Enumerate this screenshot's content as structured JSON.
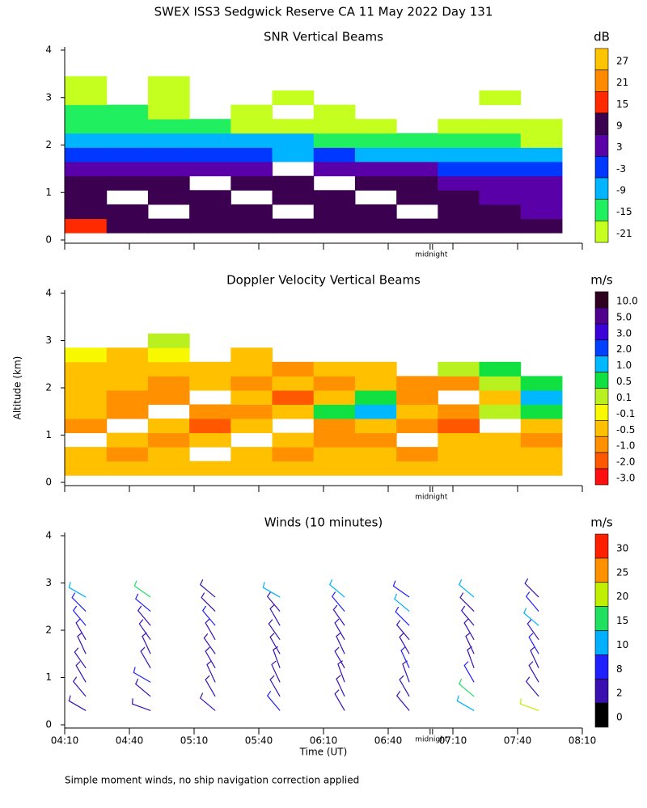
{
  "header": {
    "title": "SWEX ISS3 Sedgwick Reserve CA  11 May 2022 Day 131",
    "footnote": "Simple moment winds, no ship navigation correction applied"
  },
  "chart_data": [
    {
      "type": "contour",
      "title": "SNR Vertical Beams",
      "ylim": [
        0,
        4
      ],
      "yticks": [
        0,
        1,
        2,
        3,
        4
      ],
      "midnight": {
        "value": 7,
        "label": "midnight"
      },
      "x": [
        4.33,
        4.65,
        4.97,
        5.29,
        5.61,
        5.93,
        6.25,
        6.57,
        6.89,
        7.21,
        7.53,
        7.85
      ],
      "y": [
        0.3,
        0.6,
        0.9,
        1.2,
        1.5,
        1.8,
        2.1,
        2.4,
        2.7,
        3.0,
        3.3
      ],
      "values": [
        [
          15,
          12,
          10,
          10,
          10,
          10,
          9,
          10,
          10,
          10,
          9,
          9
        ],
        [
          10,
          9,
          null,
          9,
          10,
          null,
          9,
          9,
          null,
          9,
          9,
          4
        ],
        [
          9,
          null,
          9,
          9,
          null,
          9,
          10,
          null,
          9,
          9,
          4,
          4
        ],
        [
          10,
          9,
          9,
          null,
          9,
          9,
          null,
          9,
          9,
          4,
          3,
          3
        ],
        [
          4,
          3,
          4,
          3,
          3,
          null,
          3,
          3,
          3,
          -2,
          -2,
          -2
        ],
        [
          -2,
          -3,
          -2,
          -3,
          -2,
          -5,
          -3,
          -5,
          -6,
          -6,
          -5,
          -8
        ],
        [
          -8,
          -6,
          -9,
          -6,
          -8,
          -9,
          -10,
          -12,
          -14,
          -13,
          -14,
          -16
        ],
        [
          -10,
          -12,
          -12,
          -14,
          -16,
          -17,
          -18,
          -19,
          null,
          -20,
          -20,
          -20
        ],
        [
          -13,
          -14,
          -17,
          null,
          -20,
          null,
          -21,
          null,
          null,
          null,
          null,
          null
        ],
        [
          -20,
          null,
          -21,
          null,
          null,
          -21,
          null,
          null,
          null,
          null,
          -21,
          null
        ],
        [
          -20,
          null,
          -20,
          null,
          null,
          null,
          null,
          null,
          null,
          null,
          null,
          null
        ]
      ],
      "colorbar": {
        "unit": "dB",
        "levels": [
          27,
          21,
          15,
          9,
          3,
          -3,
          -9,
          -15,
          -21
        ],
        "colors": [
          "#ffc400",
          "#ff8a00",
          "#ff2a00",
          "#3c0050",
          "#5a00a8",
          "#0038ff",
          "#00b4ff",
          "#20f060",
          "#c4ff20"
        ]
      }
    },
    {
      "type": "contour",
      "title": "Doppler Velocity Vertical Beams",
      "ylabel": "Altitude (km)",
      "ylim": [
        0,
        4
      ],
      "yticks": [
        0,
        1,
        2,
        3,
        4
      ],
      "midnight": {
        "value": 7,
        "label": "midnight"
      },
      "x": [
        4.33,
        4.65,
        4.97,
        5.29,
        5.61,
        5.93,
        6.25,
        6.57,
        6.89,
        7.21,
        7.53,
        7.85
      ],
      "y": [
        0.3,
        0.6,
        0.9,
        1.2,
        1.5,
        1.8,
        2.1,
        2.4,
        2.7,
        3.0
      ],
      "values": [
        [
          -0.2,
          -0.2,
          -0.3,
          -0.2,
          -0.3,
          -0.2,
          -0.3,
          -0.2,
          -0.3,
          -0.3,
          -0.2,
          -0.3
        ],
        [
          -0.3,
          -0.6,
          -0.4,
          null,
          -0.3,
          -0.7,
          -0.4,
          -0.3,
          -0.6,
          -0.4,
          -0.3,
          -0.2
        ],
        [
          null,
          -0.4,
          -0.8,
          -0.4,
          null,
          -0.3,
          -0.6,
          -0.8,
          null,
          -0.5,
          -0.4,
          -0.6
        ],
        [
          -0.6,
          null,
          -0.5,
          -1.2,
          -0.4,
          null,
          -0.7,
          -0.4,
          -0.8,
          -1.1,
          null,
          -0.3
        ],
        [
          -0.4,
          -0.7,
          null,
          -0.6,
          -0.9,
          -0.4,
          0.6,
          1.2,
          -0.4,
          -0.8,
          0.2,
          0.6
        ],
        [
          -0.3,
          -0.9,
          -0.6,
          null,
          -0.5,
          -1.2,
          -0.4,
          0.8,
          -0.7,
          null,
          -0.5,
          1.1
        ],
        [
          -0.5,
          -0.4,
          -0.8,
          -0.4,
          -0.6,
          -0.4,
          -0.7,
          -0.5,
          -0.9,
          -0.6,
          0.3,
          0.7
        ],
        [
          -0.2,
          -0.4,
          -0.3,
          -0.5,
          -0.4,
          -0.6,
          -0.3,
          -0.5,
          null,
          0.2,
          0.6,
          null
        ],
        [
          -0.05,
          -0.2,
          -0.05,
          null,
          -0.3,
          null,
          null,
          null,
          null,
          null,
          null,
          null
        ],
        [
          null,
          null,
          0.3,
          null,
          null,
          null,
          null,
          null,
          null,
          null,
          null,
          null
        ]
      ],
      "colorbar": {
        "unit": "m/s",
        "levels": [
          {
            "value": 10,
            "label": "10.0"
          },
          {
            "value": 5,
            "label": "5.0"
          },
          {
            "value": 3,
            "label": "3.0"
          },
          {
            "value": 2,
            "label": "2.0"
          },
          {
            "value": 1,
            "label": "1.0"
          },
          0.5,
          0.1,
          -0.1,
          -0.5,
          {
            "value": -1,
            "label": "-1.0"
          },
          {
            "value": -2,
            "label": "-2.0"
          },
          {
            "value": -3,
            "label": "-3.0"
          }
        ],
        "colors": [
          "#300020",
          "#50008c",
          "#3c00d8",
          "#0040ff",
          "#00b8ff",
          "#10e040",
          "#b8f020",
          "#f8f800",
          "#ffc000",
          "#ff9000",
          "#ff5800",
          "#ff1010"
        ]
      }
    },
    {
      "type": "barbs",
      "title": "Winds (10 minutes)",
      "xlabel": "Time (UT)",
      "ylim": [
        0,
        4
      ],
      "yticks": [
        0,
        1,
        2,
        3,
        4
      ],
      "midnight": {
        "value": 7,
        "label": "midnight"
      },
      "xlim": [
        4.1667,
        8.1667
      ],
      "xticks": [
        {
          "value": 4.1667,
          "label": "04:10"
        },
        {
          "value": 4.6667,
          "label": "04:40"
        },
        {
          "value": 5.1667,
          "label": "05:10"
        },
        {
          "value": 5.6667,
          "label": "05:40"
        },
        {
          "value": 6.1667,
          "label": "06:10"
        },
        {
          "value": 6.6667,
          "label": "06:40"
        },
        {
          "value": 7.1667,
          "label": "07:10"
        },
        {
          "value": 7.6667,
          "label": "07:40"
        },
        {
          "value": 8.1667,
          "label": "08:10"
        }
      ],
      "x": [
        4.33,
        4.83,
        5.33,
        5.83,
        6.33,
        6.83,
        7.33,
        7.83
      ],
      "altitudes": [
        0.3,
        0.6,
        0.9,
        1.2,
        1.5,
        1.8,
        2.1,
        2.4,
        2.7
      ],
      "speed": [
        [
          3,
          5,
          6,
          7,
          6,
          7,
          8,
          9,
          12
        ],
        [
          2,
          4,
          9,
          7,
          6,
          6,
          7,
          8,
          15
        ],
        [
          4,
          6,
          5,
          7,
          6,
          7,
          8,
          6,
          7
        ],
        [
          8,
          6,
          5,
          6,
          7,
          6,
          5,
          6,
          10
        ],
        [
          5,
          6,
          7,
          6,
          5,
          6,
          7,
          9,
          12
        ],
        [
          3,
          5,
          6,
          8,
          7,
          6,
          9,
          11,
          8
        ],
        [
          12,
          16,
          9,
          6,
          7,
          6,
          5,
          7,
          10
        ],
        [
          20,
          5,
          6,
          7,
          8,
          6,
          12,
          9,
          7
        ]
      ],
      "direction": [
        [
          300,
          320,
          330,
          325,
          335,
          330,
          320,
          315,
          300
        ],
        [
          290,
          310,
          300,
          330,
          335,
          325,
          320,
          310,
          305
        ],
        [
          310,
          330,
          335,
          330,
          325,
          330,
          320,
          315,
          310
        ],
        [
          320,
          330,
          335,
          340,
          330,
          325,
          330,
          320,
          300
        ],
        [
          330,
          335,
          340,
          330,
          335,
          330,
          325,
          320,
          310
        ],
        [
          320,
          330,
          340,
          335,
          330,
          320,
          315,
          310,
          305
        ],
        [
          300,
          310,
          330,
          340,
          335,
          330,
          320,
          315,
          310
        ],
        [
          290,
          320,
          330,
          335,
          330,
          325,
          310,
          320,
          315
        ]
      ],
      "colorbar": {
        "unit": "m/s",
        "levels": [
          30,
          25,
          20,
          15,
          10,
          8,
          2,
          0
        ],
        "colors": [
          "#ff2000",
          "#ff9000",
          "#c0f000",
          "#20e060",
          "#00b0ff",
          "#2020ff",
          "#3a10b0",
          "#000000"
        ]
      }
    }
  ]
}
